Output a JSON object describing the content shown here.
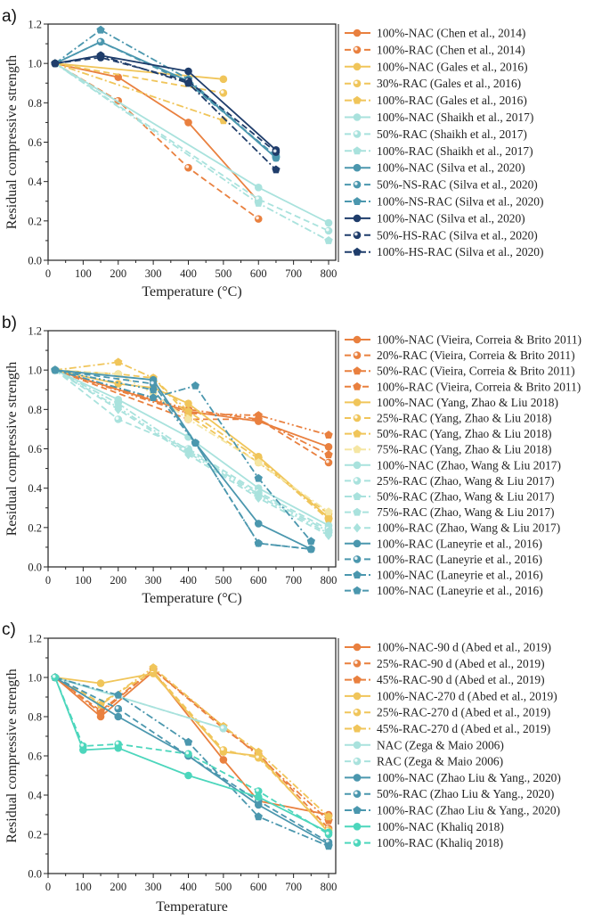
{
  "colors": {
    "orange": "#E9803F",
    "yellow": "#F0C55A",
    "pale_yellow": "#F5E6A3",
    "light_cyan": "#A9E2DD",
    "teal": "#4B97AE",
    "navy": "#1F3D6B",
    "mint": "#4CD6BC"
  },
  "chart_data": [
    {
      "type": "line",
      "panel_label": "a)",
      "xlabel": "Temperature (°C)",
      "ylabel": "Residual compressive strength",
      "xlim": [
        0,
        800
      ],
      "ylim": [
        0,
        1.2
      ],
      "xticks": [
        "0",
        "100",
        "200",
        "300",
        "400",
        "500",
        "600",
        "700",
        "800"
      ],
      "yticks": [
        "0.0",
        "0.2",
        "0.4",
        "0.6",
        "0.8",
        "1.0",
        "1.2"
      ],
      "grid": false,
      "legend_position": "right",
      "series": [
        {
          "name": "100%-NAC (Chen et al., 2014)",
          "color": "orange",
          "style": "solid",
          "marker": "circle",
          "x": [
            20,
            200,
            400,
            600
          ],
          "y": [
            1.0,
            0.93,
            0.7,
            0.3
          ]
        },
        {
          "name": "100%-RAC (Chen et al., 2014)",
          "color": "orange",
          "style": "dash",
          "marker": "half",
          "x": [
            20,
            200,
            400,
            600
          ],
          "y": [
            1.0,
            0.81,
            0.47,
            0.21
          ]
        },
        {
          "name": "100%-NAC (Gales et al., 2016)",
          "color": "yellow",
          "style": "solid",
          "marker": "circle",
          "x": [
            20,
            500
          ],
          "y": [
            1.0,
            0.92
          ]
        },
        {
          "name": "30%-RAC  (Gales et al., 2016)",
          "color": "yellow",
          "style": "dash",
          "marker": "half",
          "x": [
            20,
            500
          ],
          "y": [
            1.0,
            0.85
          ]
        },
        {
          "name": "100%-RAC  (Gales et al., 2016)",
          "color": "yellow",
          "style": "dashdot",
          "marker": "pentagon",
          "x": [
            20,
            500
          ],
          "y": [
            1.0,
            0.71
          ]
        },
        {
          "name": "100%-NAC (Shaikh et al., 2017)",
          "color": "light_cyan",
          "style": "solid",
          "marker": "circle",
          "x": [
            20,
            600,
            800
          ],
          "y": [
            1.0,
            0.37,
            0.19
          ]
        },
        {
          "name": "50%-RAC (Shaikh et al., 2017)",
          "color": "light_cyan",
          "style": "dash",
          "marker": "half",
          "x": [
            20,
            600,
            800
          ],
          "y": [
            1.0,
            0.31,
            0.15
          ]
        },
        {
          "name": "100%-RAC (Shaikh et al., 2017)",
          "color": "light_cyan",
          "style": "dashdot",
          "marker": "pentagon",
          "x": [
            20,
            600,
            800
          ],
          "y": [
            1.0,
            0.29,
            0.1
          ]
        },
        {
          "name": "100%-NAC (Silva et al., 2020)",
          "color": "teal",
          "style": "solid",
          "marker": "circle",
          "x": [
            20,
            150,
            400,
            650
          ],
          "y": [
            1.0,
            1.11,
            0.91,
            0.52
          ]
        },
        {
          "name": "50%-NS-RAC (Silva et al., 2020)",
          "color": "teal",
          "style": "dash",
          "marker": "half",
          "x": [
            20,
            150,
            400,
            650
          ],
          "y": [
            1.0,
            1.11,
            0.9,
            0.53
          ]
        },
        {
          "name": "100%-NS-RAC (Silva et al., 2020)",
          "color": "teal",
          "style": "dashdot",
          "marker": "pentagon",
          "x": [
            20,
            150,
            400,
            650
          ],
          "y": [
            1.0,
            1.17,
            0.92,
            0.52
          ]
        },
        {
          "name": "100%-NAC (Silva et al., 2020)",
          "color": "navy",
          "style": "solid",
          "marker": "circle",
          "x": [
            20,
            150,
            400,
            650
          ],
          "y": [
            1.0,
            1.04,
            0.96,
            0.56
          ]
        },
        {
          "name": "50%-HS-RAC (Silva et al., 2020)",
          "color": "navy",
          "style": "dash",
          "marker": "half",
          "x": [
            20,
            150,
            400,
            650
          ],
          "y": [
            1.0,
            1.03,
            0.91,
            0.55
          ]
        },
        {
          "name": "100%-HS-RAC (Silva et al., 2020)",
          "color": "navy",
          "style": "dashdot",
          "marker": "pentagon",
          "x": [
            20,
            150,
            400,
            650
          ],
          "y": [
            1.0,
            1.04,
            0.9,
            0.46
          ]
        }
      ]
    },
    {
      "type": "line",
      "panel_label": "b)",
      "xlabel": "Temperature (°C)",
      "ylabel": "Residual compressive strength",
      "xlim": [
        0,
        800
      ],
      "ylim": [
        0,
        1.2
      ],
      "xticks": [
        "0",
        "100",
        "200",
        "300",
        "400",
        "500",
        "600",
        "700",
        "800"
      ],
      "yticks": [
        "0.0",
        "0.2",
        "0.4",
        "0.6",
        "0.8",
        "1.0",
        "1.2"
      ],
      "grid": false,
      "legend_position": "right",
      "series": [
        {
          "name": "100%-NAC (Vieira, Correia & Brito 2011)",
          "color": "orange",
          "style": "solid",
          "marker": "circle",
          "x": [
            20,
            400,
            600,
            800
          ],
          "y": [
            1.0,
            0.79,
            0.74,
            0.61
          ]
        },
        {
          "name": "20%-RAC  (Vieira, Correia & Brito 2011)",
          "color": "orange",
          "style": "dash",
          "marker": "half",
          "x": [
            20,
            400,
            600,
            800
          ],
          "y": [
            1.0,
            0.75,
            0.75,
            0.53
          ]
        },
        {
          "name": "50%-RAC  (Vieira, Correia & Brito 2011)",
          "color": "orange",
          "style": "dashdot",
          "marker": "pentagon",
          "x": [
            20,
            400,
            600,
            800
          ],
          "y": [
            1.0,
            0.8,
            0.75,
            0.57
          ]
        },
        {
          "name": "100%-RAC  (Vieira, Correia & Brito 2011)",
          "color": "orange",
          "style": "dashdotdot",
          "marker": "pentagon",
          "x": [
            20,
            400,
            600,
            800
          ],
          "y": [
            1.0,
            0.78,
            0.77,
            0.67
          ]
        },
        {
          "name": "100%-NAC (Yang, Zhao & Liu 2018)",
          "color": "yellow",
          "style": "solid",
          "marker": "circle",
          "x": [
            20,
            200,
            300,
            400,
            600,
            800
          ],
          "y": [
            1.0,
            0.93,
            0.91,
            0.83,
            0.56,
            0.25
          ]
        },
        {
          "name": "25%-RAC  (Yang, Zhao & Liu 2018)",
          "color": "yellow",
          "style": "dash",
          "marker": "half",
          "x": [
            20,
            200,
            300,
            400,
            600,
            800
          ],
          "y": [
            1.0,
            0.98,
            0.96,
            0.77,
            0.53,
            0.27
          ]
        },
        {
          "name": "50%-RAC  (Yang, Zhao & Liu 2018)",
          "color": "yellow",
          "style": "dashdot",
          "marker": "pentagon",
          "x": [
            20,
            200,
            300,
            400,
            600,
            800
          ],
          "y": [
            1.0,
            1.04,
            0.96,
            0.79,
            0.55,
            0.24
          ]
        },
        {
          "name": "75%-RAC  (Yang, Zhao & Liu 2018)",
          "color": "pale_yellow",
          "style": "dashdot",
          "marker": "pentagon",
          "x": [
            20,
            200,
            300,
            400,
            600,
            800
          ],
          "y": [
            1.0,
            0.98,
            0.88,
            0.75,
            0.53,
            0.28
          ]
        },
        {
          "name": "100%-NAC (Zhao, Wang & Liu 2017)",
          "color": "light_cyan",
          "style": "solid",
          "marker": "circle",
          "x": [
            20,
            200,
            400,
            600,
            800
          ],
          "y": [
            1.0,
            0.85,
            0.66,
            0.4,
            0.21
          ]
        },
        {
          "name": "25%-RAC (Zhao, Wang & Liu 2017)",
          "color": "light_cyan",
          "style": "dash",
          "marker": "half",
          "x": [
            20,
            200,
            400,
            600,
            800
          ],
          "y": [
            1.0,
            0.75,
            0.6,
            0.38,
            0.19
          ]
        },
        {
          "name": "50%-RAC (Zhao, Wang & Liu 2017)",
          "color": "light_cyan",
          "style": "dashdot",
          "marker": "pentagon",
          "x": [
            20,
            200,
            400,
            600,
            800
          ],
          "y": [
            1.0,
            0.83,
            0.59,
            0.37,
            0.18
          ]
        },
        {
          "name": "75%-RAC (Zhao, Wang & Liu 2017)",
          "color": "light_cyan",
          "style": "dashdotdot",
          "marker": "pentagon",
          "x": [
            20,
            200,
            400,
            600,
            800
          ],
          "y": [
            1.0,
            0.81,
            0.58,
            0.36,
            0.17
          ]
        },
        {
          "name": "100%-RAC (Zhao, Wang & Liu 2017)",
          "color": "light_cyan",
          "style": "dash",
          "marker": "diamond",
          "x": [
            20,
            200,
            400,
            600,
            800
          ],
          "y": [
            1.0,
            0.8,
            0.57,
            0.35,
            0.16
          ]
        },
        {
          "name": "100%-RAC (Laneyrie et al., 2016)",
          "color": "teal",
          "style": "solid",
          "marker": "circle",
          "x": [
            20,
            300,
            420,
            600,
            750
          ],
          "y": [
            1.0,
            0.95,
            0.63,
            0.22,
            0.09
          ]
        },
        {
          "name": "100%-RAC (Laneyrie et al., 2016)",
          "color": "teal",
          "style": "dash",
          "marker": "half",
          "x": [
            20,
            300,
            420,
            600,
            750
          ],
          "y": [
            1.0,
            0.93,
            0.63,
            0.12,
            0.09
          ]
        },
        {
          "name": "100%-NAC (Laneyrie et al., 2016)",
          "color": "teal",
          "style": "dashdot",
          "marker": "pentagon",
          "x": [
            20,
            300,
            420,
            600,
            750
          ],
          "y": [
            1.0,
            0.86,
            0.92,
            0.45,
            0.13
          ]
        },
        {
          "name": "100%-NAC (Laneyrie et al., 2016)",
          "color": "teal",
          "style": "dashdotdot",
          "marker": "pentagon",
          "x": [
            20,
            300,
            420,
            600,
            750
          ],
          "y": [
            1.0,
            0.9,
            0.63,
            0.12,
            0.09
          ]
        }
      ]
    },
    {
      "type": "line",
      "panel_label": "c)",
      "xlabel": "Temperature",
      "ylabel": "Residual compressive strength",
      "xlim": [
        0,
        800
      ],
      "ylim": [
        0,
        1.2
      ],
      "xticks": [
        "0",
        "100",
        "200",
        "300",
        "400",
        "500",
        "600",
        "700",
        "800"
      ],
      "yticks": [
        "0.0",
        "0.2",
        "0.4",
        "0.6",
        "0.8",
        "1.0",
        "1.2"
      ],
      "grid": false,
      "legend_position": "right",
      "series": [
        {
          "name": "100%-NAC-90 d (Abed et al., 2019)",
          "color": "orange",
          "style": "solid",
          "marker": "circle",
          "x": [
            20,
            150,
            300,
            500,
            600,
            800
          ],
          "y": [
            1.0,
            0.8,
            1.03,
            0.58,
            0.37,
            0.3
          ]
        },
        {
          "name": "25%-RAC-90 d  (Abed et al., 2019)",
          "color": "orange",
          "style": "dash",
          "marker": "half",
          "x": [
            20,
            150,
            300,
            500,
            600,
            800
          ],
          "y": [
            1.0,
            0.83,
            1.04,
            0.74,
            0.61,
            0.23
          ]
        },
        {
          "name": "45%-RAC-90 d  (Abed et al., 2019)",
          "color": "orange",
          "style": "dashdot",
          "marker": "pentagon",
          "x": [
            20,
            150,
            300,
            500,
            600,
            800
          ],
          "y": [
            1.0,
            0.82,
            1.04,
            0.75,
            0.6,
            0.27
          ]
        },
        {
          "name": "100%-NAC-270 d  (Abed et al., 2019)",
          "color": "yellow",
          "style": "solid",
          "marker": "circle",
          "x": [
            20,
            150,
            300,
            500,
            600,
            800
          ],
          "y": [
            1.0,
            0.97,
            1.02,
            0.62,
            0.6,
            0.21
          ]
        },
        {
          "name": "25%-RAC-270 d (Abed et al., 2019)",
          "color": "yellow",
          "style": "dash",
          "marker": "half",
          "x": [
            20,
            150,
            300,
            500,
            600,
            800
          ],
          "y": [
            1.0,
            0.87,
            1.03,
            0.63,
            0.59,
            0.22
          ]
        },
        {
          "name": "45%-RAC-270 d (Abed et al., 2019)",
          "color": "yellow",
          "style": "dashdot",
          "marker": "pentagon",
          "x": [
            20,
            150,
            300,
            500,
            600,
            800
          ],
          "y": [
            1.0,
            0.86,
            1.05,
            0.75,
            0.62,
            0.29
          ]
        },
        {
          "name": "NAC (Zega & Maio 2006)",
          "color": "light_cyan",
          "style": "solid",
          "marker": "circle",
          "x": [
            20,
            500
          ],
          "y": [
            1.0,
            0.74
          ]
        },
        {
          "name": "RAC (Zega & Maio 2006)",
          "color": "light_cyan",
          "style": "dash",
          "marker": "half",
          "x": [
            20,
            500
          ],
          "y": [
            1.0,
            0.74
          ]
        },
        {
          "name": "100%-NAC (Zhao Liu & Yang., 2020)",
          "color": "teal",
          "style": "solid",
          "marker": "circle",
          "x": [
            20,
            200,
            400,
            600,
            800
          ],
          "y": [
            1.0,
            0.8,
            0.6,
            0.35,
            0.15
          ]
        },
        {
          "name": "50%-RAC (Zhao Liu & Yang., 2020)",
          "color": "teal",
          "style": "dash",
          "marker": "half",
          "x": [
            20,
            200,
            400,
            600,
            800
          ],
          "y": [
            1.0,
            0.84,
            0.6,
            0.37,
            0.16
          ]
        },
        {
          "name": "100%-RAC (Zhao Liu & Yang., 2020)",
          "color": "teal",
          "style": "dashdot",
          "marker": "pentagon",
          "x": [
            20,
            200,
            400,
            600,
            800
          ],
          "y": [
            1.0,
            0.91,
            0.67,
            0.29,
            0.14
          ]
        },
        {
          "name": "100%-NAC  (Khaliq 2018)",
          "color": "mint",
          "style": "solid",
          "marker": "circle",
          "x": [
            20,
            100,
            200,
            400,
            600,
            800
          ],
          "y": [
            1.0,
            0.63,
            0.64,
            0.5,
            0.39,
            0.21
          ]
        },
        {
          "name": "100%-RAC (Khaliq 2018)",
          "color": "mint",
          "style": "dash",
          "marker": "half",
          "x": [
            20,
            100,
            200,
            400,
            600,
            800
          ],
          "y": [
            1.0,
            0.65,
            0.66,
            0.61,
            0.42,
            0.2
          ]
        }
      ]
    }
  ]
}
